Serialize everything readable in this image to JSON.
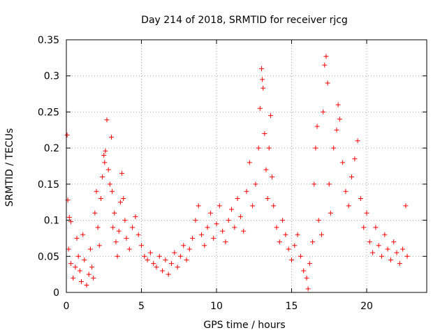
{
  "chart_data": {
    "type": "scatter",
    "title": "Day 214 of 2018, SRMTID for receiver rjcg",
    "xlabel": "GPS time / hours",
    "ylabel": "SRMTID / TECUs",
    "xlim": [
      0,
      24
    ],
    "ylim": [
      0,
      0.35
    ],
    "x_ticks": [
      0,
      5,
      10,
      15,
      20
    ],
    "x_tick_labels": [
      "0",
      "5",
      "10",
      "15",
      "20"
    ],
    "y_ticks": [
      0,
      0.05,
      0.1,
      0.15,
      0.2,
      0.25,
      0.3,
      0.35
    ],
    "y_tick_labels": [
      "0",
      "0.05",
      "0.1",
      "0.15",
      "0.2",
      "0.25",
      "0.3",
      "0.35"
    ],
    "grid": true,
    "marker": "+",
    "series": [
      {
        "name": "SRMTID",
        "color": "#ff0000",
        "points": [
          [
            0.05,
            0.218
          ],
          [
            0.1,
            0.128
          ],
          [
            0.2,
            0.104
          ],
          [
            0.3,
            0.098
          ],
          [
            0.15,
            0.06
          ],
          [
            0.3,
            0.04
          ],
          [
            0.45,
            0.02
          ],
          [
            0.6,
            0.035
          ],
          [
            0.7,
            0.075
          ],
          [
            0.8,
            0.05
          ],
          [
            0.9,
            0.03
          ],
          [
            1.0,
            0.015
          ],
          [
            1.1,
            0.08
          ],
          [
            1.2,
            0.045
          ],
          [
            1.35,
            0.01
          ],
          [
            1.5,
            0.025
          ],
          [
            1.6,
            0.06
          ],
          [
            1.7,
            0.035
          ],
          [
            1.8,
            0.02
          ],
          [
            1.9,
            0.11
          ],
          [
            2.0,
            0.14
          ],
          [
            2.1,
            0.09
          ],
          [
            2.2,
            0.065
          ],
          [
            2.3,
            0.13
          ],
          [
            2.4,
            0.16
          ],
          [
            2.5,
            0.19
          ],
          [
            2.55,
            0.18
          ],
          [
            2.6,
            0.196
          ],
          [
            2.7,
            0.239
          ],
          [
            2.8,
            0.17
          ],
          [
            2.9,
            0.15
          ],
          [
            3.0,
            0.215
          ],
          [
            3.05,
            0.14
          ],
          [
            3.1,
            0.09
          ],
          [
            3.2,
            0.11
          ],
          [
            3.3,
            0.07
          ],
          [
            3.4,
            0.05
          ],
          [
            3.5,
            0.085
          ],
          [
            3.6,
            0.125
          ],
          [
            3.7,
            0.165
          ],
          [
            3.8,
            0.13
          ],
          [
            3.9,
            0.1
          ],
          [
            4.0,
            0.075
          ],
          [
            4.2,
            0.06
          ],
          [
            4.4,
            0.09
          ],
          [
            4.6,
            0.105
          ],
          [
            4.8,
            0.08
          ],
          [
            5.0,
            0.065
          ],
          [
            5.2,
            0.05
          ],
          [
            5.4,
            0.045
          ],
          [
            5.6,
            0.055
          ],
          [
            5.8,
            0.04
          ],
          [
            6.0,
            0.035
          ],
          [
            6.2,
            0.05
          ],
          [
            6.4,
            0.03
          ],
          [
            6.6,
            0.045
          ],
          [
            6.8,
            0.025
          ],
          [
            7.0,
            0.04
          ],
          [
            7.2,
            0.055
          ],
          [
            7.4,
            0.035
          ],
          [
            7.6,
            0.05
          ],
          [
            7.8,
            0.065
          ],
          [
            8.0,
            0.045
          ],
          [
            8.2,
            0.06
          ],
          [
            8.4,
            0.075
          ],
          [
            8.6,
            0.1
          ],
          [
            8.8,
            0.12
          ],
          [
            9.0,
            0.08
          ],
          [
            9.2,
            0.065
          ],
          [
            9.4,
            0.09
          ],
          [
            9.6,
            0.11
          ],
          [
            9.8,
            0.075
          ],
          [
            10.0,
            0.095
          ],
          [
            10.2,
            0.12
          ],
          [
            10.4,
            0.085
          ],
          [
            10.6,
            0.07
          ],
          [
            10.8,
            0.1
          ],
          [
            11.0,
            0.115
          ],
          [
            11.2,
            0.09
          ],
          [
            11.4,
            0.13
          ],
          [
            11.6,
            0.105
          ],
          [
            11.8,
            0.085
          ],
          [
            12.0,
            0.14
          ],
          [
            12.2,
            0.18
          ],
          [
            12.4,
            0.12
          ],
          [
            12.6,
            0.15
          ],
          [
            12.8,
            0.2
          ],
          [
            12.9,
            0.255
          ],
          [
            13.0,
            0.31
          ],
          [
            13.05,
            0.295
          ],
          [
            13.1,
            0.283
          ],
          [
            13.2,
            0.22
          ],
          [
            13.3,
            0.17
          ],
          [
            13.4,
            0.13
          ],
          [
            13.5,
            0.2
          ],
          [
            13.6,
            0.245
          ],
          [
            13.7,
            0.16
          ],
          [
            13.8,
            0.12
          ],
          [
            14.0,
            0.09
          ],
          [
            14.2,
            0.07
          ],
          [
            14.4,
            0.1
          ],
          [
            14.6,
            0.08
          ],
          [
            14.8,
            0.06
          ],
          [
            15.0,
            0.045
          ],
          [
            15.2,
            0.065
          ],
          [
            15.4,
            0.08
          ],
          [
            15.6,
            0.05
          ],
          [
            15.8,
            0.03
          ],
          [
            16.0,
            0.02
          ],
          [
            16.1,
            0.005
          ],
          [
            16.2,
            0.04
          ],
          [
            16.4,
            0.07
          ],
          [
            16.5,
            0.15
          ],
          [
            16.6,
            0.2
          ],
          [
            16.7,
            0.23
          ],
          [
            16.8,
            0.1
          ],
          [
            17.0,
            0.08
          ],
          [
            17.1,
            0.25
          ],
          [
            17.2,
            0.315
          ],
          [
            17.3,
            0.327
          ],
          [
            17.4,
            0.29
          ],
          [
            17.5,
            0.15
          ],
          [
            17.6,
            0.11
          ],
          [
            17.8,
            0.2
          ],
          [
            18.0,
            0.225
          ],
          [
            18.1,
            0.26
          ],
          [
            18.2,
            0.24
          ],
          [
            18.4,
            0.18
          ],
          [
            18.6,
            0.14
          ],
          [
            18.8,
            0.12
          ],
          [
            19.0,
            0.16
          ],
          [
            19.2,
            0.185
          ],
          [
            19.4,
            0.21
          ],
          [
            19.6,
            0.13
          ],
          [
            19.8,
            0.09
          ],
          [
            20.0,
            0.11
          ],
          [
            20.2,
            0.07
          ],
          [
            20.4,
            0.055
          ],
          [
            20.6,
            0.09
          ],
          [
            20.8,
            0.065
          ],
          [
            21.0,
            0.05
          ],
          [
            21.2,
            0.08
          ],
          [
            21.4,
            0.06
          ],
          [
            21.6,
            0.045
          ],
          [
            21.8,
            0.07
          ],
          [
            22.0,
            0.055
          ],
          [
            22.2,
            0.04
          ],
          [
            22.4,
            0.06
          ],
          [
            22.6,
            0.12
          ],
          [
            22.7,
            0.05
          ]
        ]
      }
    ]
  }
}
